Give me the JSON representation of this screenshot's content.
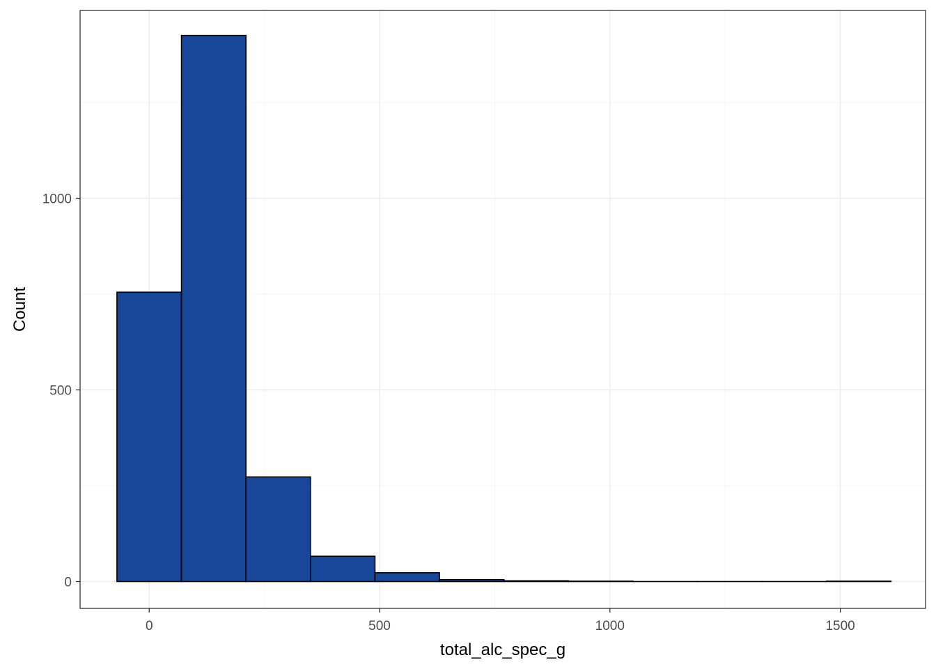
{
  "chart_data": {
    "type": "bar",
    "subtype": "histogram",
    "title": "",
    "xlabel": "total_alc_spec_g",
    "ylabel": "Count",
    "xlim": [
      -150,
      1685
    ],
    "ylim": [
      -70,
      1490
    ],
    "x_ticks": [
      0,
      500,
      1000,
      1500
    ],
    "x_tick_labels": [
      "0",
      "500",
      "1000",
      "1500"
    ],
    "y_ticks": [
      0,
      500,
      1000
    ],
    "y_tick_labels": [
      "0",
      "500",
      "1000"
    ],
    "bins": [
      {
        "x0": -70,
        "x1": 70,
        "count": 755
      },
      {
        "x0": 70,
        "x1": 210,
        "count": 1425
      },
      {
        "x0": 210,
        "x1": 350,
        "count": 273
      },
      {
        "x0": 350,
        "x1": 490,
        "count": 66
      },
      {
        "x0": 490,
        "x1": 630,
        "count": 23
      },
      {
        "x0": 630,
        "x1": 770,
        "count": 5
      },
      {
        "x0": 770,
        "x1": 910,
        "count": 2
      },
      {
        "x0": 910,
        "x1": 1050,
        "count": 1
      },
      {
        "x0": 1050,
        "x1": 1190,
        "count": 0
      },
      {
        "x0": 1190,
        "x1": 1330,
        "count": 0
      },
      {
        "x0": 1330,
        "x1": 1470,
        "count": 0
      },
      {
        "x0": 1470,
        "x1": 1610,
        "count": 1
      }
    ],
    "grid": true,
    "legend": "none",
    "colors": {
      "bar_fill": "#184699",
      "bar_stroke": "#000000",
      "grid_major": "#ebebeb",
      "grid_minor": "#f4f4f4",
      "panel_border": "#333333",
      "tick_text": "#4d4d4d"
    }
  }
}
